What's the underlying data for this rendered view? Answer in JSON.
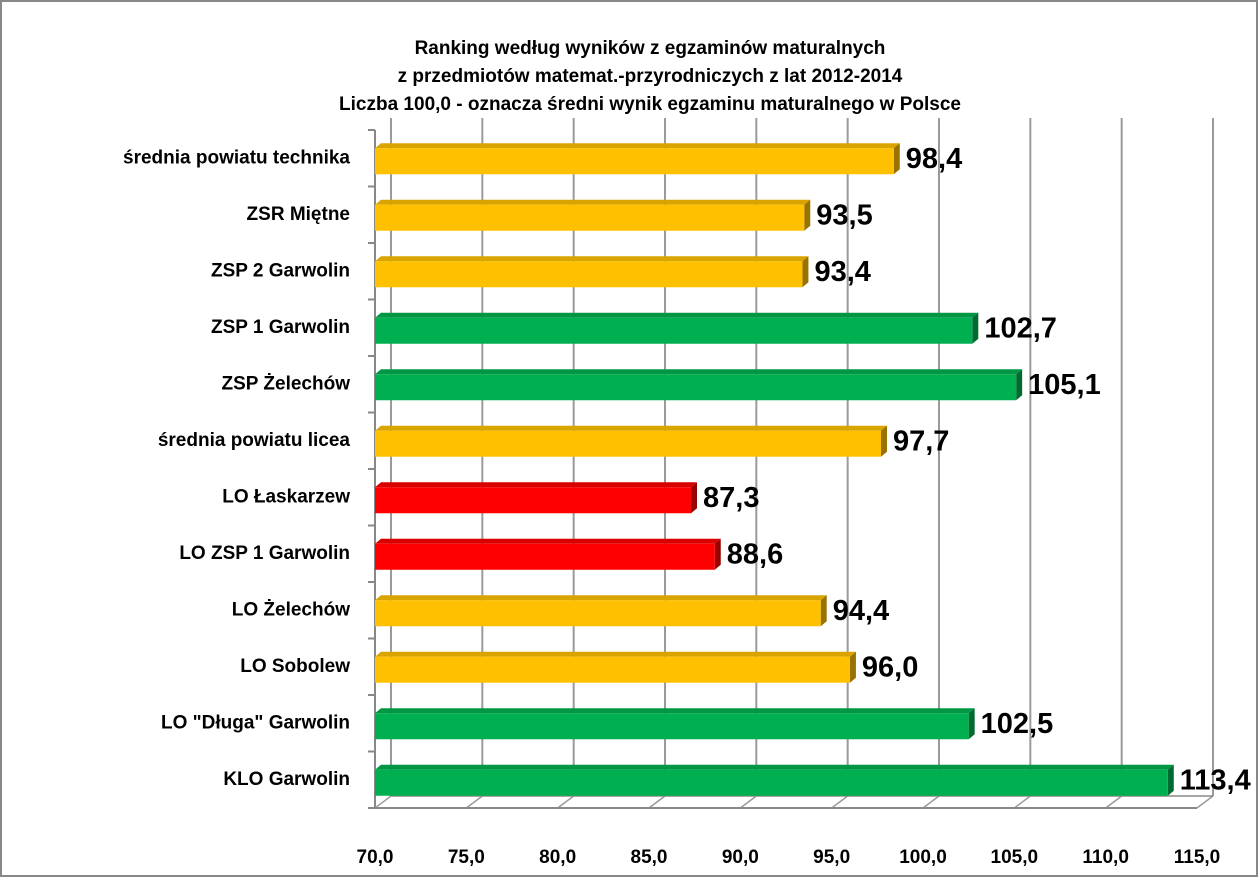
{
  "chart_data": {
    "type": "bar",
    "orientation": "horizontal",
    "title": [
      "Ranking według wyników z egzaminów maturalnych",
      "z przedmiotów  matemat.-przyrodniczych z lat 2012-2014",
      "Liczba 100,0 - oznacza średni wynik egzaminu maturalnego w Polsce"
    ],
    "categories": [
      "średnia powiatu technika",
      "ZSR Miętne",
      "ZSP 2 Garwolin",
      "ZSP 1 Garwolin",
      "ZSP Żelechów",
      "średnia powiatu licea",
      "LO Łaskarzew",
      "LO ZSP 1 Garwolin",
      "LO Żelechów",
      "LO Sobolew",
      "LO \"Długa\" Garwolin",
      "KLO Garwolin"
    ],
    "values": [
      98.4,
      93.5,
      93.4,
      102.7,
      105.1,
      97.7,
      87.3,
      88.6,
      94.4,
      96.0,
      102.5,
      113.4
    ],
    "value_labels": [
      "98,4",
      "93,5",
      "93,4",
      "102,7",
      "105,1",
      "97,7",
      "87,3",
      "88,6",
      "94,4",
      "96,0",
      "102,5",
      "113,4"
    ],
    "colors": [
      "#ffc000",
      "#ffc000",
      "#ffc000",
      "#00b050",
      "#00b050",
      "#ffc000",
      "#ff0000",
      "#ff0000",
      "#ffc000",
      "#ffc000",
      "#00b050",
      "#00b050"
    ],
    "xlim": [
      70,
      115
    ],
    "xticks": [
      {
        "value": 70,
        "label": "70,0"
      },
      {
        "value": 75,
        "label": "75,0"
      },
      {
        "value": 80,
        "label": "80,0"
      },
      {
        "value": 85,
        "label": "85,0"
      },
      {
        "value": 90,
        "label": "90,0"
      },
      {
        "value": 95,
        "label": "95,0"
      },
      {
        "value": 100,
        "label": "100,0"
      },
      {
        "value": 105,
        "label": "105,0"
      },
      {
        "value": 110,
        "label": "110,0"
      },
      {
        "value": 115,
        "label": "115,0"
      }
    ],
    "grid": true
  }
}
